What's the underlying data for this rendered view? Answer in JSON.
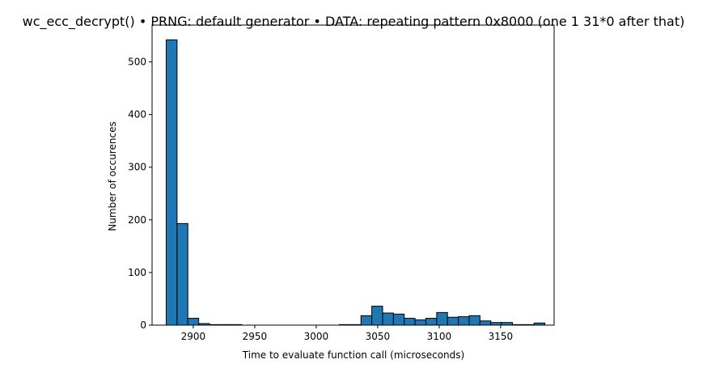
{
  "chart_data": {
    "type": "bar",
    "title": "wc_ecc_decrypt() • PRNG: default generator • DATA: repeating pattern 0x8000 (one 1 31*0 after that)",
    "xlabel": "Time to evaluate function call (microseconds)",
    "ylabel": "Number of occurences",
    "xlim": [
      2866.5,
      3193.5
    ],
    "ylim": [
      0,
      570
    ],
    "xticks": [
      2900,
      2950,
      3000,
      3050,
      3100,
      3150
    ],
    "yticks": [
      0,
      100,
      200,
      300,
      400,
      500
    ],
    "grid": false,
    "bar_color": "#1f77b4",
    "edge_color": "#000000",
    "bins": [
      {
        "x0": 2878.0,
        "x1": 2886.8,
        "count": 542
      },
      {
        "x0": 2886.8,
        "x1": 2895.6,
        "count": 193
      },
      {
        "x0": 2895.6,
        "x1": 2904.4,
        "count": 13
      },
      {
        "x0": 2904.4,
        "x1": 2913.2,
        "count": 3
      },
      {
        "x0": 2913.2,
        "x1": 2922.0,
        "count": 1
      },
      {
        "x0": 2922.0,
        "x1": 2930.8,
        "count": 1
      },
      {
        "x0": 2930.8,
        "x1": 2939.6,
        "count": 1
      },
      {
        "x0": 2939.6,
        "x1": 2948.4,
        "count": 0
      },
      {
        "x0": 2948.4,
        "x1": 2957.2,
        "count": 0
      },
      {
        "x0": 2957.2,
        "x1": 2966.0,
        "count": 0
      },
      {
        "x0": 2966.0,
        "x1": 2974.8,
        "count": 0
      },
      {
        "x0": 2974.8,
        "x1": 2983.6,
        "count": 0
      },
      {
        "x0": 2983.6,
        "x1": 2992.4,
        "count": 0
      },
      {
        "x0": 2992.4,
        "x1": 3001.2,
        "count": 0
      },
      {
        "x0": 3001.2,
        "x1": 3010.0,
        "count": 0
      },
      {
        "x0": 3010.0,
        "x1": 3018.8,
        "count": 0
      },
      {
        "x0": 3018.8,
        "x1": 3027.6,
        "count": 1
      },
      {
        "x0": 3027.6,
        "x1": 3036.4,
        "count": 1
      },
      {
        "x0": 3036.4,
        "x1": 3045.2,
        "count": 18
      },
      {
        "x0": 3045.2,
        "x1": 3054.0,
        "count": 36
      },
      {
        "x0": 3054.0,
        "x1": 3062.8,
        "count": 23
      },
      {
        "x0": 3062.8,
        "x1": 3071.6,
        "count": 21
      },
      {
        "x0": 3071.6,
        "x1": 3080.4,
        "count": 13
      },
      {
        "x0": 3080.4,
        "x1": 3089.2,
        "count": 10
      },
      {
        "x0": 3089.2,
        "x1": 3098.0,
        "count": 13
      },
      {
        "x0": 3098.0,
        "x1": 3106.8,
        "count": 24
      },
      {
        "x0": 3106.8,
        "x1": 3115.6,
        "count": 15
      },
      {
        "x0": 3115.6,
        "x1": 3124.4,
        "count": 16
      },
      {
        "x0": 3124.4,
        "x1": 3133.2,
        "count": 18
      },
      {
        "x0": 3133.2,
        "x1": 3142.0,
        "count": 8
      },
      {
        "x0": 3142.0,
        "x1": 3150.8,
        "count": 5
      },
      {
        "x0": 3150.8,
        "x1": 3159.6,
        "count": 5
      },
      {
        "x0": 3159.6,
        "x1": 3168.4,
        "count": 1
      },
      {
        "x0": 3168.4,
        "x1": 3177.2,
        "count": 1
      },
      {
        "x0": 3177.2,
        "x1": 3186.0,
        "count": 4
      }
    ]
  }
}
